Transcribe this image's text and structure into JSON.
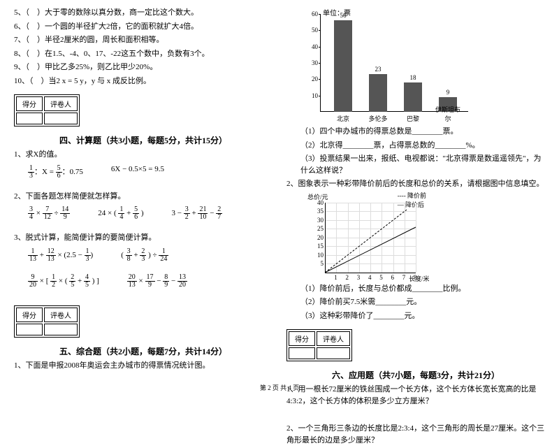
{
  "left": {
    "items": [
      "5、（　）大于零的数除以真分数，商一定比这个数大。",
      "6、（　）一个圆的半径扩大2倍，它的面积就扩大4倍。",
      "7、（　）半径2厘米的圆，周长和面积相等。",
      "8、（　）在1.5、-4、0、17、-22这五个数中，负数有3个。",
      "9、（　）甲比乙多25%，则乙比甲少20%。",
      "10、（　）当2 x = 5 y，y 与 x 成反比例。"
    ],
    "score_hdr": [
      "得分",
      "评卷人"
    ],
    "sec4_title": "四、计算题（共3小题，每题5分，共计15分）",
    "q1": "1、求X的值。",
    "q1a": "：X = ",
    "q1a_r": "：0.75",
    "q1b": "6X − 0.5×5 = 9.5",
    "q2": "2、下面各题怎样简便就怎样算。",
    "q3": "3、脱式计算，能简便计算的要简便计算。",
    "sec5_title": "五、综合题（共2小题，每题7分，共计14分）",
    "q5_1": "1、下面是申报2008年奥运会主办城市的得票情况统计图。"
  },
  "right": {
    "chart": {
      "unit": "单位：票",
      "ylabels": [
        10,
        20,
        30,
        40,
        50,
        60
      ],
      "bars": [
        {
          "label": "北京",
          "value": 56
        },
        {
          "label": "多伦多",
          "value": 23
        },
        {
          "label": "巴黎",
          "value": 18
        },
        {
          "label": "伊斯坦布尔",
          "value": 9
        }
      ],
      "bar_color": "#555555",
      "ymax": 60
    },
    "chart_q": [
      "（1）四个申办城市的得票总数是________票。",
      "（2）北京得________票，占得票总数的________%。",
      "（3）投票结果一出来，报纸、电视都说：\"北京得票是数遥遥领先\"，为什么这样说？"
    ],
    "q2_intro": "2、图象表示一种彩带降价前后的长度和总价的关系，请根据图中信息填空。",
    "line_chart": {
      "ylabel": "总价/元",
      "xlabel": "长度/米",
      "legend": [
        "降价前",
        "降价后"
      ],
      "xmax": 8,
      "ymax": 40,
      "xticks": [
        1,
        2,
        3,
        4,
        5,
        6,
        7,
        8
      ],
      "yticks": [
        5,
        10,
        15,
        20,
        25,
        30,
        35,
        40
      ],
      "grid_color": "#dddddd"
    },
    "line_q": [
      "（1）降价前后，长度与总价都成________比例。",
      "（2）降价前买7.5米需________元。",
      "（3）这种彩带降价了________元。"
    ],
    "score_hdr": [
      "得分",
      "评卷人"
    ],
    "sec6_title": "六、应用题（共7小题，每题3分，共计21分）",
    "q6_1": "1、用一根长72厘米的铁丝围成一个长方体，这个长方体长宽长宽高的比是4:3:2，这个长方体的体积是多少立方厘米？",
    "q6_2": "2、一个三角形三条边的长度比是2:3:4，这个三角形的周长是27厘米。这个三角形最长的边是多少厘米？"
  },
  "footer": "第 2 页 共 4 页"
}
